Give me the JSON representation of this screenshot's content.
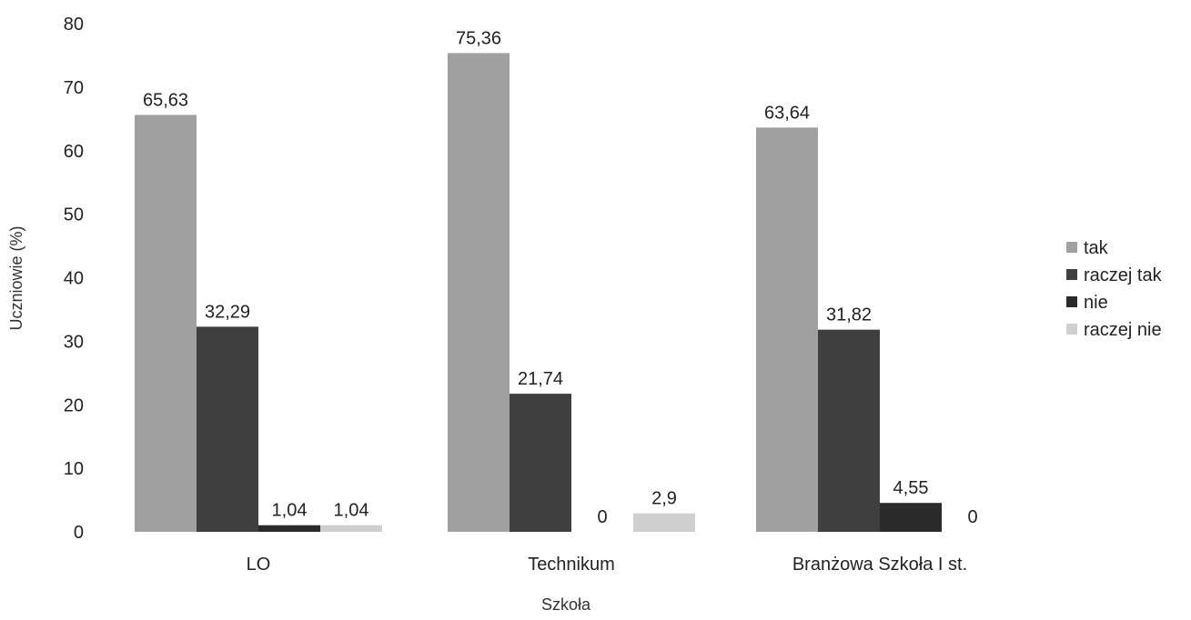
{
  "chart_data": {
    "type": "bar",
    "title": "",
    "xlabel": "Szkoła",
    "ylabel": "Uczniowie (%)",
    "ylim": [
      0,
      80
    ],
    "yticks": [
      0,
      10,
      20,
      30,
      40,
      50,
      60,
      70,
      80
    ],
    "grid": false,
    "legend_position": "right",
    "categories": [
      "LO",
      "Technikum",
      "Branżowa Szkoła I st."
    ],
    "series": [
      {
        "name": "tak",
        "color": "#a0a0a0",
        "values": [
          65.63,
          75.36,
          63.64
        ],
        "labels": [
          "65,63",
          "75,36",
          "63,64"
        ]
      },
      {
        "name": "raczej tak",
        "color": "#3f3f3f",
        "values": [
          32.29,
          21.74,
          31.82
        ],
        "labels": [
          "32,29",
          "21,74",
          "31,82"
        ]
      },
      {
        "name": "nie",
        "color": "#2b2b2b",
        "values": [
          1.04,
          0,
          4.55
        ],
        "labels": [
          "1,04",
          "0",
          "4,55"
        ]
      },
      {
        "name": "raczej nie",
        "color": "#cfcfcf",
        "values": [
          1.04,
          2.9,
          0
        ],
        "labels": [
          "1,04",
          "2,9",
          "0"
        ]
      }
    ]
  }
}
